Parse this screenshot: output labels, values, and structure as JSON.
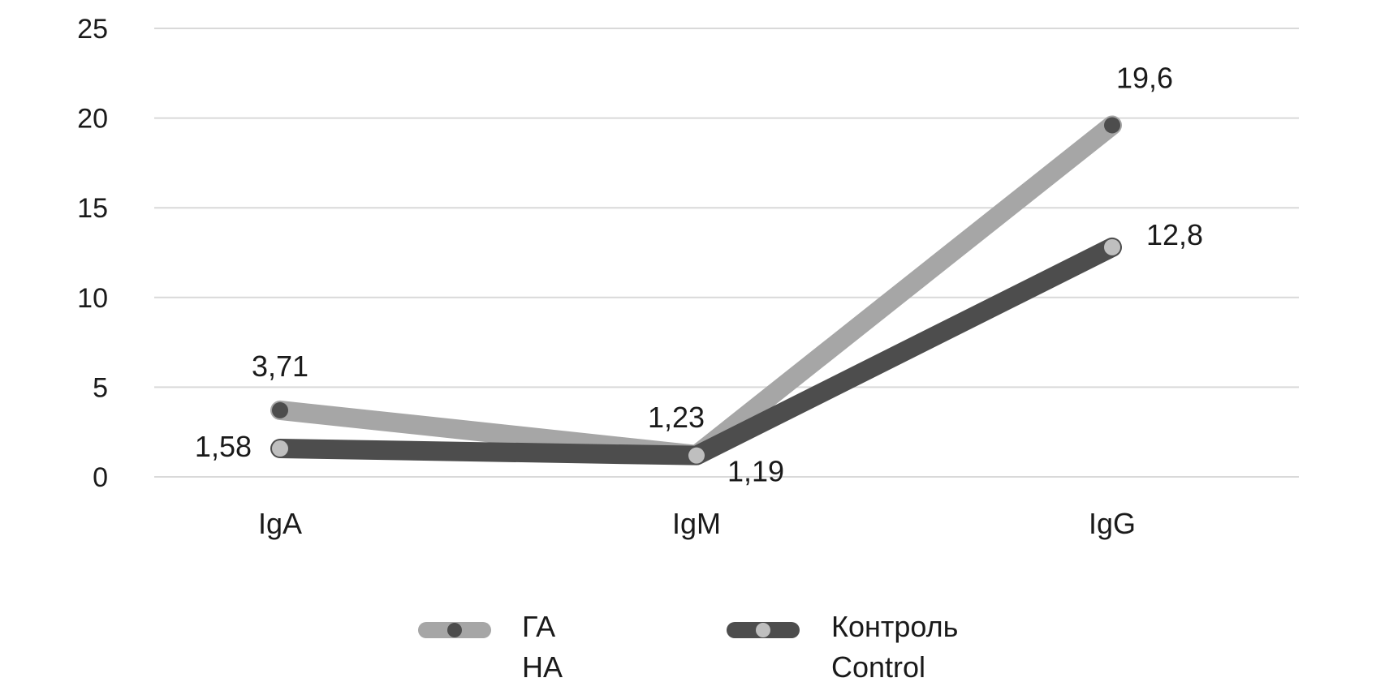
{
  "chart_data": {
    "type": "line",
    "categories": [
      "IgA",
      "IgM",
      "IgG"
    ],
    "ylim": [
      0,
      25
    ],
    "yticks": [
      0,
      5,
      10,
      15,
      20,
      25
    ],
    "ytick_labels": [
      "0",
      "5",
      "10",
      "15",
      "20",
      "25"
    ],
    "grid": true,
    "legend_position": "bottom",
    "series": [
      {
        "name": "ГА",
        "name_en": "HA",
        "values": [
          3.71,
          1.23,
          19.6
        ],
        "data_labels": [
          "3,71",
          "1,23",
          "19,6"
        ],
        "line_color": "#a6a6a6",
        "marker_color": "#4d4d4d"
      },
      {
        "name": "Контроль",
        "name_en": "Control",
        "values": [
          1.58,
          1.19,
          12.8
        ],
        "data_labels": [
          "1,58",
          "1,19",
          "12,8"
        ],
        "line_color": "#4d4d4d",
        "marker_color": "#bfbfbf"
      }
    ]
  }
}
